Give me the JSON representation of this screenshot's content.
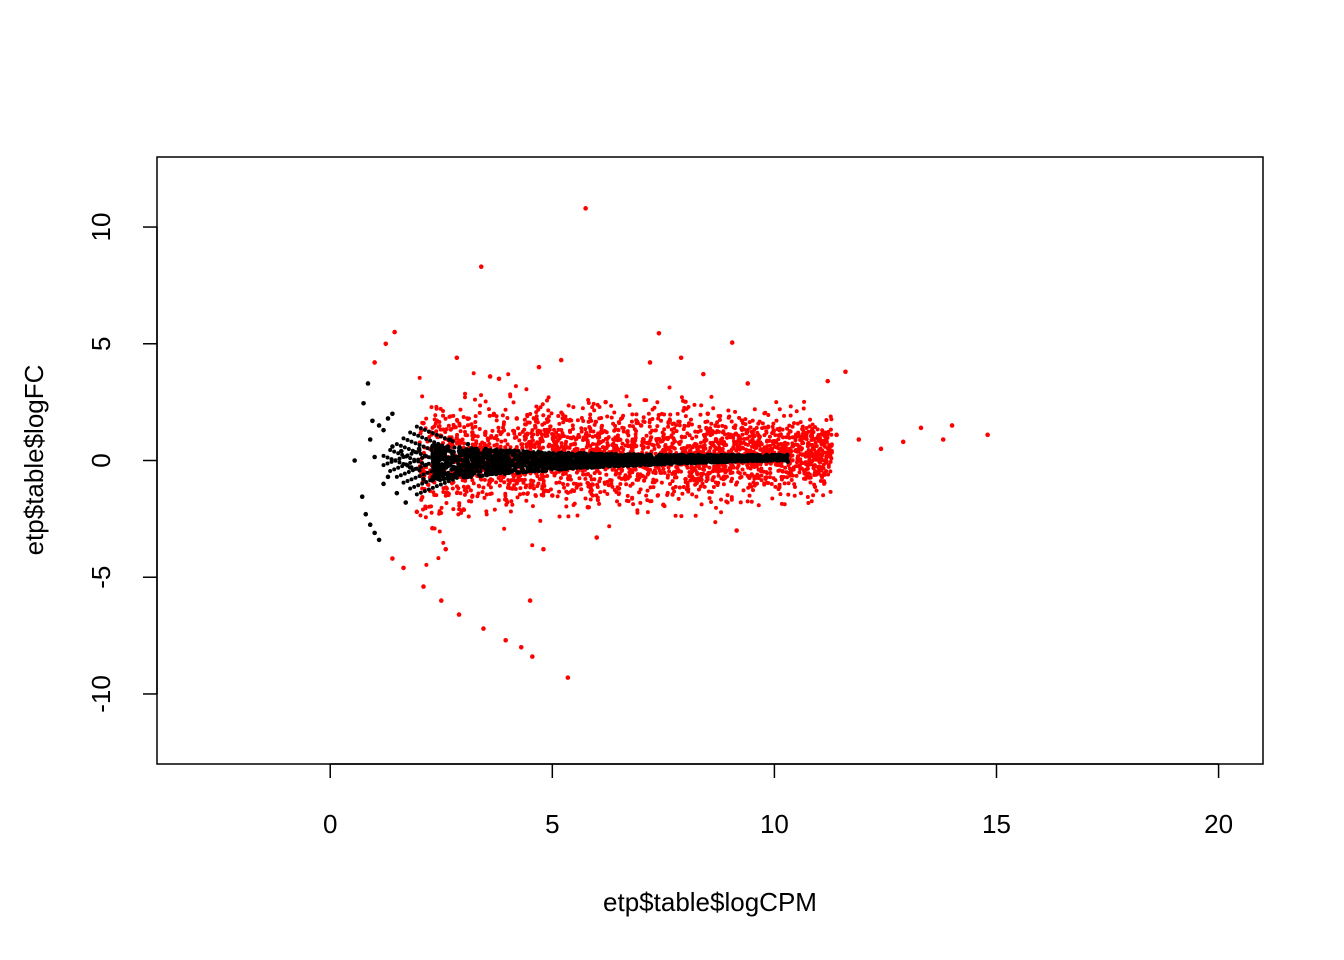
{
  "chart_data": {
    "type": "scatter",
    "title": "",
    "xlabel": "etp$table$logCPM",
    "ylabel": "etp$table$logFC",
    "xlim": [
      -3.9,
      21.0
    ],
    "ylim": [
      -13.0,
      13.0
    ],
    "x_ticks": [
      0,
      5,
      10,
      15,
      20
    ],
    "x_tick_labels": [
      "0",
      "5",
      "10",
      "15",
      "20"
    ],
    "y_ticks": [
      -10,
      -5,
      0,
      5,
      10
    ],
    "y_tick_labels": [
      "-10",
      "-5",
      "0",
      "5",
      "10"
    ],
    "grid": false,
    "legend": "none",
    "series": [
      {
        "color": "#000000",
        "points": [
          [
            0.55,
            0.0
          ],
          [
            0.75,
            2.45
          ],
          [
            0.85,
            3.3
          ],
          [
            0.95,
            1.7
          ],
          [
            0.9,
            0.9
          ],
          [
            1.1,
            1.5
          ],
          [
            1.2,
            1.3
          ],
          [
            1.3,
            1.8
          ],
          [
            1.4,
            2.0
          ],
          [
            1.0,
            0.15
          ],
          [
            0.72,
            -1.55
          ],
          [
            0.8,
            -2.3
          ],
          [
            0.9,
            -2.75
          ],
          [
            1.0,
            -3.1
          ],
          [
            1.1,
            -3.4
          ],
          [
            1.2,
            -1.0
          ],
          [
            1.3,
            -0.7
          ],
          [
            1.5,
            -1.4
          ],
          [
            1.7,
            -1.8
          ],
          [
            1.4,
            0.6
          ],
          [
            1.6,
            0.4
          ],
          [
            1.8,
            -0.3
          ],
          [
            2.0,
            0.5
          ],
          [
            2.1,
            -0.8
          ],
          [
            2.3,
            0.6
          ],
          [
            2.5,
            -0.5
          ],
          [
            2.7,
            0.9
          ],
          [
            2.9,
            -0.6
          ],
          [
            3.1,
            0.7
          ],
          [
            3.3,
            -0.4
          ],
          [
            3.5,
            0.5
          ],
          [
            3.7,
            -0.3
          ],
          [
            4.0,
            0.4
          ],
          [
            4.5,
            -0.2
          ],
          [
            5.0,
            0.3
          ],
          [
            5.5,
            -0.2
          ],
          [
            6.0,
            0.2
          ],
          [
            7.0,
            -0.1
          ],
          [
            8.0,
            0.1
          ],
          [
            9.0,
            0.0
          ],
          [
            10.0,
            0.05
          ],
          [
            10.3,
            -0.05
          ]
        ]
      },
      {
        "color": "#ff0000",
        "points": [
          [
            5.75,
            10.8
          ],
          [
            3.4,
            8.3
          ],
          [
            1.45,
            5.5
          ],
          [
            1.25,
            5.0
          ],
          [
            1.0,
            4.2
          ],
          [
            2.85,
            4.4
          ],
          [
            3.8,
            3.5
          ],
          [
            5.2,
            4.3
          ],
          [
            7.4,
            5.45
          ],
          [
            7.2,
            4.2
          ],
          [
            7.9,
            4.4
          ],
          [
            9.05,
            5.05
          ],
          [
            11.6,
            3.8
          ],
          [
            11.2,
            3.4
          ],
          [
            9.4,
            3.3
          ],
          [
            8.4,
            3.7
          ],
          [
            2.1,
            1.6
          ],
          [
            2.4,
            1.7
          ],
          [
            4.7,
            4.0
          ],
          [
            3.6,
            3.6
          ],
          [
            13.3,
            1.4
          ],
          [
            14.0,
            1.5
          ],
          [
            14.8,
            1.1
          ],
          [
            13.8,
            0.9
          ],
          [
            12.9,
            0.8
          ],
          [
            12.4,
            0.5
          ],
          [
            11.9,
            0.9
          ],
          [
            11.4,
            1.1
          ],
          [
            2.6,
            -3.8
          ],
          [
            3.0,
            -2.1
          ],
          [
            1.95,
            -2.2
          ],
          [
            2.3,
            -2.9
          ],
          [
            1.4,
            -4.2
          ],
          [
            1.65,
            -4.6
          ],
          [
            2.1,
            -5.4
          ],
          [
            2.5,
            -6.0
          ],
          [
            2.9,
            -6.6
          ],
          [
            3.45,
            -7.2
          ],
          [
            3.95,
            -7.7
          ],
          [
            4.3,
            -8.0
          ],
          [
            4.55,
            -8.4
          ],
          [
            4.5,
            -6.0
          ],
          [
            5.35,
            -9.3
          ],
          [
            6.0,
            -3.3
          ],
          [
            4.8,
            -3.8
          ],
          [
            9.15,
            -3.0
          ],
          [
            5.0,
            -1.5
          ],
          [
            6.5,
            -1.2
          ],
          [
            8.0,
            -0.8
          ],
          [
            9.5,
            0.6
          ],
          [
            10.5,
            0.4
          ],
          [
            7.0,
            1.5
          ],
          [
            8.5,
            2.0
          ],
          [
            6.2,
            2.5
          ],
          [
            4.2,
            1.8
          ],
          [
            3.2,
            1.2
          ],
          [
            5.8,
            -2.0
          ],
          [
            7.5,
            -1.9
          ],
          [
            4.1,
            -1.2
          ],
          [
            3.6,
            -0.9
          ]
        ]
      }
    ]
  }
}
